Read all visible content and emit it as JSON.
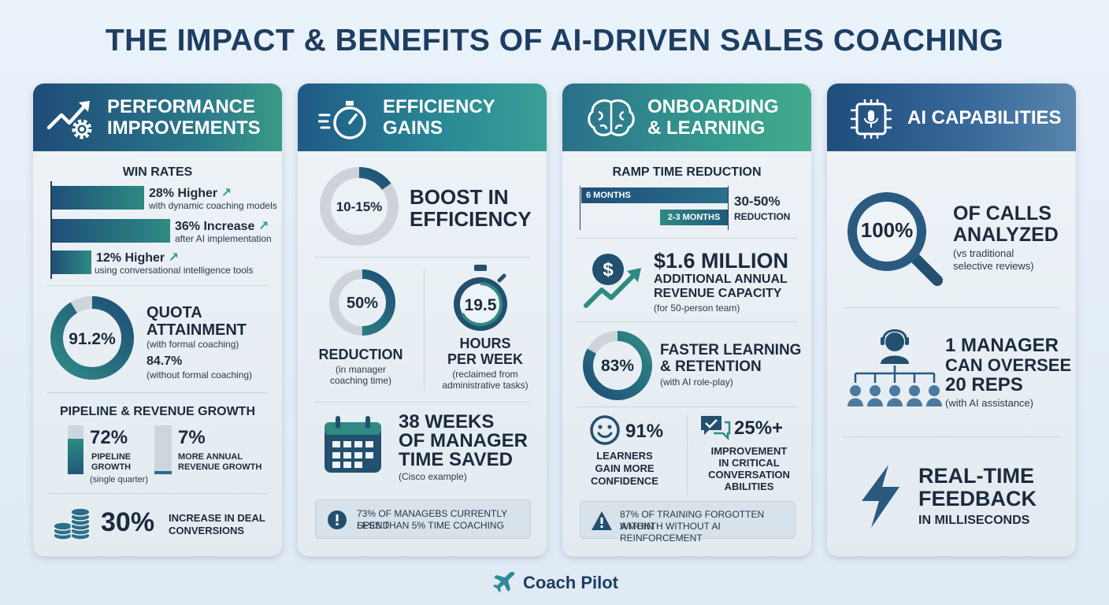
{
  "title": "THE IMPACT & BENEFITS OF AI-DRIVEN SALES COACHING",
  "brand": "Coach Pilot",
  "performance": {
    "header_line1": "PERFORMANCE",
    "header_line2": "IMPROVEMENTS",
    "win_rates": {
      "heading": "WIN RATES",
      "items": [
        {
          "value": "28% Higher",
          "desc": "with dynamic coaching models",
          "bar_fraction": 0.28
        },
        {
          "value": "36% Increase",
          "desc": "after AI implementation",
          "bar_fraction": 0.36
        },
        {
          "value": "12% Higher",
          "desc": "using conversational intelligence tools",
          "bar_fraction": 0.12
        }
      ]
    },
    "quota": {
      "ring_value": "91.2%",
      "ring_fraction": 0.912,
      "heading_line1": "QUOTA",
      "heading_line2": "ATTAINMENT",
      "with_text": "(with formal coaching)",
      "alt_value": "84.7%",
      "alt_text": "(without formal coaching)"
    },
    "pipeline": {
      "heading": "PIPELINE & REVENUE GROWTH",
      "pipeline_value": "72%",
      "pipeline_fraction": 0.72,
      "pipeline_label1": "PIPELINE",
      "pipeline_label2": "GROWTH",
      "pipeline_note": "(single quarter)",
      "revenue_value": "7%",
      "revenue_fraction": 0.07,
      "revenue_label1": "MORE ANNUAL",
      "revenue_label2": "REVENUE GROWTH"
    },
    "conversions": {
      "value": "30%",
      "label1": "INCREASE IN DEAL",
      "label2": "CONVERSIONS"
    }
  },
  "efficiency": {
    "header_line1": "EFFICIENCY",
    "header_line2": "GAINS",
    "boost": {
      "ring_value": "10-15%",
      "ring_fraction": 0.15,
      "line1": "BOOST IN",
      "line2": "EFFICIENCY"
    },
    "reduction": {
      "ring_value": "50%",
      "ring_fraction": 0.5,
      "label": "REDUCTION",
      "note1": "(in manager",
      "note2": "coaching time)"
    },
    "hours": {
      "value": "19.5",
      "label1": "HOURS",
      "label2": "PER WEEK",
      "note1": "(reclaimed from",
      "note2": "administrative tasks)"
    },
    "weeks": {
      "line1": "38 WEEKS",
      "line2": "OF MANAGER",
      "line3": "TIME SAVED",
      "note": "(Cisco example)"
    },
    "alert": {
      "line1": "73% OF MANAGEBS CURRENTLY SPEND",
      "line2": "LESS THAN 5% TIME COACHING"
    }
  },
  "onboarding": {
    "header_line1": "ONBOARDING",
    "header_line2": "& LEARNING",
    "ramp": {
      "heading": "RAMP TIME REDUCTION",
      "bar1": "6 MONTHS",
      "bar2": "2-3 MONTHS",
      "value": "30-50%",
      "value_label": "REDUCTION"
    },
    "revenue": {
      "value": "$1.6 MILLION",
      "line1": "ADDITIONAL ANNUAL",
      "line2": "REVENUE CAPACITY",
      "note": "(for 50-person team)"
    },
    "learning": {
      "ring_value": "83%",
      "ring_fraction": 0.83,
      "line1": "FASTER LEARNING",
      "line2": "& RETENTION",
      "note": "(with AI role-play)"
    },
    "confidence": {
      "value": "91%",
      "line1": "LEARNERS",
      "line2": "GAIN MORE",
      "line3": "CONFIDENCE"
    },
    "improvement": {
      "value": "25%+",
      "line1": "IMPROVEMENT",
      "line2": "IN CRITICAL",
      "line3": "CONVERSATION",
      "line4": "ABILITIES"
    },
    "alert": {
      "line1": "87% OF TRAINING FORGOTTEN WITHIN",
      "line2": "A MONTH WITHOUT AI REINFORCEMENT"
    }
  },
  "ai": {
    "header": "AI CAPABILITIES",
    "calls": {
      "value": "100%",
      "line1": "OF CALLS",
      "line2": "ANALYZED",
      "note1": "(vs traditional",
      "note2": "selective reviews)"
    },
    "manager": {
      "line1": "1 MANAGER",
      "line2": "CAN OVERSEE",
      "line3": "20 REPS",
      "note": "(with AI assistance)"
    },
    "feedback": {
      "line1": "REAL-TIME",
      "line2": "FEEDBACK",
      "line3": "IN MILLISECONDS"
    }
  }
}
